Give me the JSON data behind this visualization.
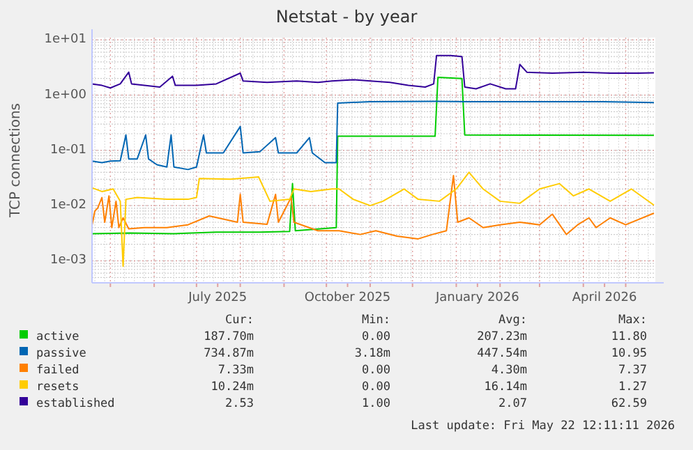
{
  "chart_data": {
    "type": "line",
    "title": "Netstat - by year",
    "ylabel": "TCP connections",
    "log": "y",
    "grid": true,
    "legend": "bottom",
    "xlim": [
      "2025-04-18",
      "2026-05-22"
    ],
    "xticks": [
      {
        "value": "2025-05-01",
        "label": null
      },
      {
        "value": "2025-06-01",
        "label": null
      },
      {
        "value": "2025-07-01",
        "label": null
      },
      {
        "value": "2025-07-16",
        "label": "July 2025"
      },
      {
        "value": "2025-08-01",
        "label": null
      },
      {
        "value": "2025-09-01",
        "label": null
      },
      {
        "value": "2025-10-01",
        "label": null
      },
      {
        "value": "2025-10-16",
        "label": "October 2025"
      },
      {
        "value": "2025-11-01",
        "label": null
      },
      {
        "value": "2025-12-01",
        "label": null
      },
      {
        "value": "2026-01-01",
        "label": null
      },
      {
        "value": "2026-01-16",
        "label": "January 2026"
      },
      {
        "value": "2026-02-01",
        "label": null
      },
      {
        "value": "2026-03-01",
        "label": null
      },
      {
        "value": "2026-04-01",
        "label": null
      },
      {
        "value": "2026-04-16",
        "label": "April 2026"
      },
      {
        "value": "2026-05-01",
        "label": null
      }
    ],
    "ylim": [
      0.0004,
      11
    ],
    "yticks": [
      {
        "value": 0.001,
        "label": "1e-03"
      },
      {
        "value": 0.01,
        "label": "1e-02"
      },
      {
        "value": 0.1,
        "label": "1e-01"
      },
      {
        "value": 1,
        "label": "1e+00"
      },
      {
        "value": 10,
        "label": "1e+01"
      }
    ],
    "series": [
      {
        "name": "active",
        "color": "#00cc00",
        "x": [
          "2025-04-18",
          "2025-05-15",
          "2025-06-15",
          "2025-07-15",
          "2025-08-15",
          "2025-09-05",
          "2025-09-07",
          "2025-09-09",
          "2025-10-08",
          "2025-10-09",
          "2025-12-17",
          "2025-12-19",
          "2026-01-05",
          "2026-01-07",
          "2026-05-21"
        ],
        "values": [
          0.0031,
          0.0032,
          0.0031,
          0.0033,
          0.0033,
          0.0034,
          0.025,
          0.0035,
          0.004,
          0.18,
          0.18,
          2.1,
          2.0,
          0.19,
          0.188
        ]
      },
      {
        "name": "passive",
        "color": "#0066b3",
        "x": [
          "2025-04-18",
          "2025-04-25",
          "2025-05-01",
          "2025-05-08",
          "2025-05-12",
          "2025-05-14",
          "2025-05-20",
          "2025-05-26",
          "2025-05-28",
          "2025-06-03",
          "2025-06-10",
          "2025-06-13",
          "2025-06-15",
          "2025-06-25",
          "2025-07-01",
          "2025-07-06",
          "2025-07-08",
          "2025-07-20",
          "2025-08-01",
          "2025-08-03",
          "2025-08-15",
          "2025-08-26",
          "2025-08-28",
          "2025-09-10",
          "2025-09-19",
          "2025-09-21",
          "2025-09-30",
          "2025-10-08",
          "2025-10-09",
          "2025-11-01",
          "2025-12-17",
          "2026-01-10",
          "2026-02-15",
          "2026-03-15",
          "2026-04-15",
          "2026-05-21"
        ],
        "values": [
          0.064,
          0.06,
          0.064,
          0.065,
          0.19,
          0.07,
          0.07,
          0.19,
          0.07,
          0.055,
          0.05,
          0.19,
          0.05,
          0.045,
          0.05,
          0.19,
          0.09,
          0.09,
          0.27,
          0.09,
          0.095,
          0.17,
          0.09,
          0.09,
          0.17,
          0.09,
          0.06,
          0.06,
          0.72,
          0.76,
          0.77,
          0.76,
          0.76,
          0.76,
          0.76,
          0.735
        ]
      },
      {
        "name": "failed",
        "color": "#ff8000",
        "x": [
          "2025-04-18",
          "2025-04-20",
          "2025-04-22",
          "2025-04-25",
          "2025-04-27",
          "2025-04-30",
          "2025-05-02",
          "2025-05-05",
          "2025-05-07",
          "2025-05-10",
          "2025-05-14",
          "2025-05-25",
          "2025-06-10",
          "2025-06-25",
          "2025-07-10",
          "2025-07-30",
          "2025-08-01",
          "2025-08-03",
          "2025-08-20",
          "2025-08-26",
          "2025-08-28",
          "2025-09-06",
          "2025-09-08",
          "2025-09-25",
          "2025-10-10",
          "2025-10-25",
          "2025-11-05",
          "2025-11-20",
          "2025-12-05",
          "2025-12-15",
          "2025-12-25",
          "2025-12-30",
          "2026-01-02",
          "2026-01-10",
          "2026-01-20",
          "2026-02-01",
          "2026-02-15",
          "2026-03-01",
          "2026-03-10",
          "2026-03-20",
          "2026-03-28",
          "2026-04-05",
          "2026-04-10",
          "2026-04-20",
          "2026-05-01",
          "2026-05-21"
        ],
        "values": [
          0.0044,
          0.008,
          0.009,
          0.014,
          0.005,
          0.015,
          0.004,
          0.012,
          0.004,
          0.006,
          0.0038,
          0.004,
          0.004,
          0.0045,
          0.0065,
          0.005,
          0.016,
          0.005,
          0.0046,
          0.016,
          0.005,
          0.014,
          0.005,
          0.0035,
          0.0035,
          0.003,
          0.0035,
          0.0028,
          0.0025,
          0.003,
          0.0035,
          0.035,
          0.005,
          0.006,
          0.004,
          0.0045,
          0.005,
          0.0045,
          0.007,
          0.003,
          0.0045,
          0.006,
          0.004,
          0.006,
          0.0045,
          0.0073
        ]
      },
      {
        "name": "resets",
        "color": "#ffcc00",
        "x": [
          "2025-04-18",
          "2025-04-25",
          "2025-05-03",
          "2025-05-08",
          "2025-05-10",
          "2025-05-12",
          "2025-05-20",
          "2025-06-10",
          "2025-06-25",
          "2025-07-01",
          "2025-07-03",
          "2025-07-25",
          "2025-08-14",
          "2025-08-22",
          "2025-09-05",
          "2025-09-08",
          "2025-09-20",
          "2025-10-05",
          "2025-10-10",
          "2025-10-20",
          "2025-11-01",
          "2025-11-10",
          "2025-11-25",
          "2025-12-05",
          "2025-12-20",
          "2026-01-01",
          "2026-01-10",
          "2026-01-20",
          "2026-02-01",
          "2026-02-15",
          "2026-03-01",
          "2026-03-15",
          "2026-03-25",
          "2026-04-05",
          "2026-04-20",
          "2026-05-05",
          "2026-05-21"
        ],
        "values": [
          0.021,
          0.018,
          0.02,
          0.012,
          0.0008,
          0.013,
          0.014,
          0.013,
          0.013,
          0.014,
          0.031,
          0.03,
          0.033,
          0.012,
          0.013,
          0.02,
          0.018,
          0.02,
          0.02,
          0.013,
          0.01,
          0.012,
          0.02,
          0.013,
          0.012,
          0.02,
          0.04,
          0.02,
          0.012,
          0.011,
          0.02,
          0.025,
          0.015,
          0.02,
          0.012,
          0.02,
          0.0102
        ]
      },
      {
        "name": "established",
        "color": "#330099",
        "x": [
          "2025-04-18",
          "2025-04-25",
          "2025-05-01",
          "2025-05-08",
          "2025-05-14",
          "2025-05-16",
          "2025-05-25",
          "2025-06-05",
          "2025-06-14",
          "2025-06-16",
          "2025-07-01",
          "2025-07-15",
          "2025-08-01",
          "2025-08-03",
          "2025-08-20",
          "2025-09-10",
          "2025-09-25",
          "2025-10-05",
          "2025-10-20",
          "2025-11-01",
          "2025-11-15",
          "2025-11-28",
          "2025-12-10",
          "2025-12-16",
          "2025-12-18",
          "2025-12-28",
          "2026-01-05",
          "2026-01-07",
          "2026-01-15",
          "2026-01-25",
          "2026-02-05",
          "2026-02-12",
          "2026-02-15",
          "2026-02-20",
          "2026-03-10",
          "2026-04-01",
          "2026-04-20",
          "2026-05-10",
          "2026-05-21"
        ],
        "values": [
          1.6,
          1.5,
          1.35,
          1.6,
          2.6,
          1.6,
          1.5,
          1.4,
          2.2,
          1.5,
          1.5,
          1.6,
          2.5,
          1.8,
          1.7,
          1.8,
          1.7,
          1.8,
          1.9,
          1.8,
          1.7,
          1.5,
          1.4,
          1.6,
          5.2,
          5.2,
          5.0,
          1.4,
          1.3,
          1.6,
          1.3,
          1.3,
          3.6,
          2.6,
          2.5,
          2.6,
          2.5,
          2.5,
          2.53
        ]
      }
    ],
    "annotations": [
      "Cur:",
      "Min:",
      "Avg:",
      "Max:",
      "187.70m",
      "0.00",
      "207.23m",
      "11.80",
      "734.87m",
      "3.18m",
      "447.54m",
      "10.95",
      "7.33m",
      "0.00",
      "4.30m",
      "7.37",
      "10.24m",
      "0.00",
      "16.14m",
      "1.27",
      "2.53",
      "1.00",
      "2.07",
      "62.59",
      "Last update: Fri May 22 12:11:11 2026"
    ]
  }
}
